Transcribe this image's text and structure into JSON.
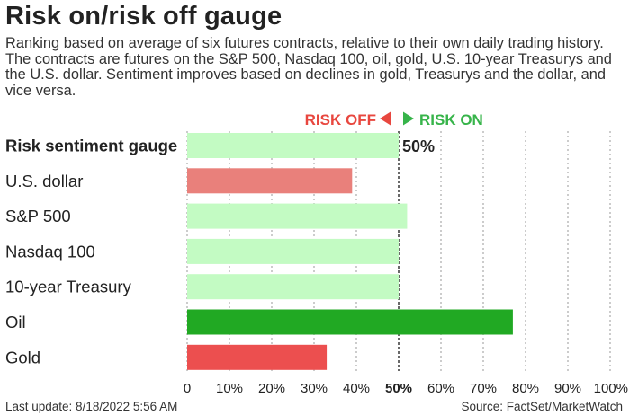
{
  "title": "Risk on/risk off gauge",
  "subtitle": "Ranking based on average of six futures contracts, relative to their own daily trading history. The contracts are futures on the S&P 500, Nasdaq 100, oil, gold, U.S. 10-year Treasurys and the U.S. dollar. Sentiment improves based on declines in gold, Treasurys and the dollar, and vice versa.",
  "legend": {
    "risk_off": "RISK OFF",
    "risk_on": "RISK ON"
  },
  "colors": {
    "risk_off_label": "#e8473f",
    "risk_on_label": "#37b44a",
    "light_green": "#c3fbc3",
    "dark_green": "#21a923",
    "light_red": "#e9807b",
    "red": "#ec4f4f"
  },
  "footer": {
    "last_update": "Last update: 8/18/2022 5:56 AM",
    "source": "Source: FactSet/MarketWatch"
  },
  "chart_data": {
    "type": "bar",
    "orientation": "horizontal",
    "categories": [
      "Risk sentiment gauge",
      "U.S. dollar",
      "S&P 500",
      "Nasdaq 100",
      "10-year Treasury",
      "Oil",
      "Gold"
    ],
    "values": [
      50,
      39,
      52,
      50,
      50,
      77,
      33
    ],
    "value_unit": "%",
    "bar_colors": [
      "#c3fbc3",
      "#e9807b",
      "#c3fbc3",
      "#c3fbc3",
      "#c3fbc3",
      "#21a923",
      "#ec4f4f"
    ],
    "data_labels": [
      "50%",
      "",
      "",
      "",
      "",
      "",
      ""
    ],
    "x_ticks": [
      "0",
      "10%",
      "20%",
      "30%",
      "40%",
      "50%",
      "60%",
      "70%",
      "80%",
      "90%",
      "100%"
    ],
    "xlim": [
      0,
      100
    ],
    "bold_categories": [
      "Risk sentiment gauge"
    ],
    "grid": "vertical dotted",
    "reference_line": 50
  }
}
